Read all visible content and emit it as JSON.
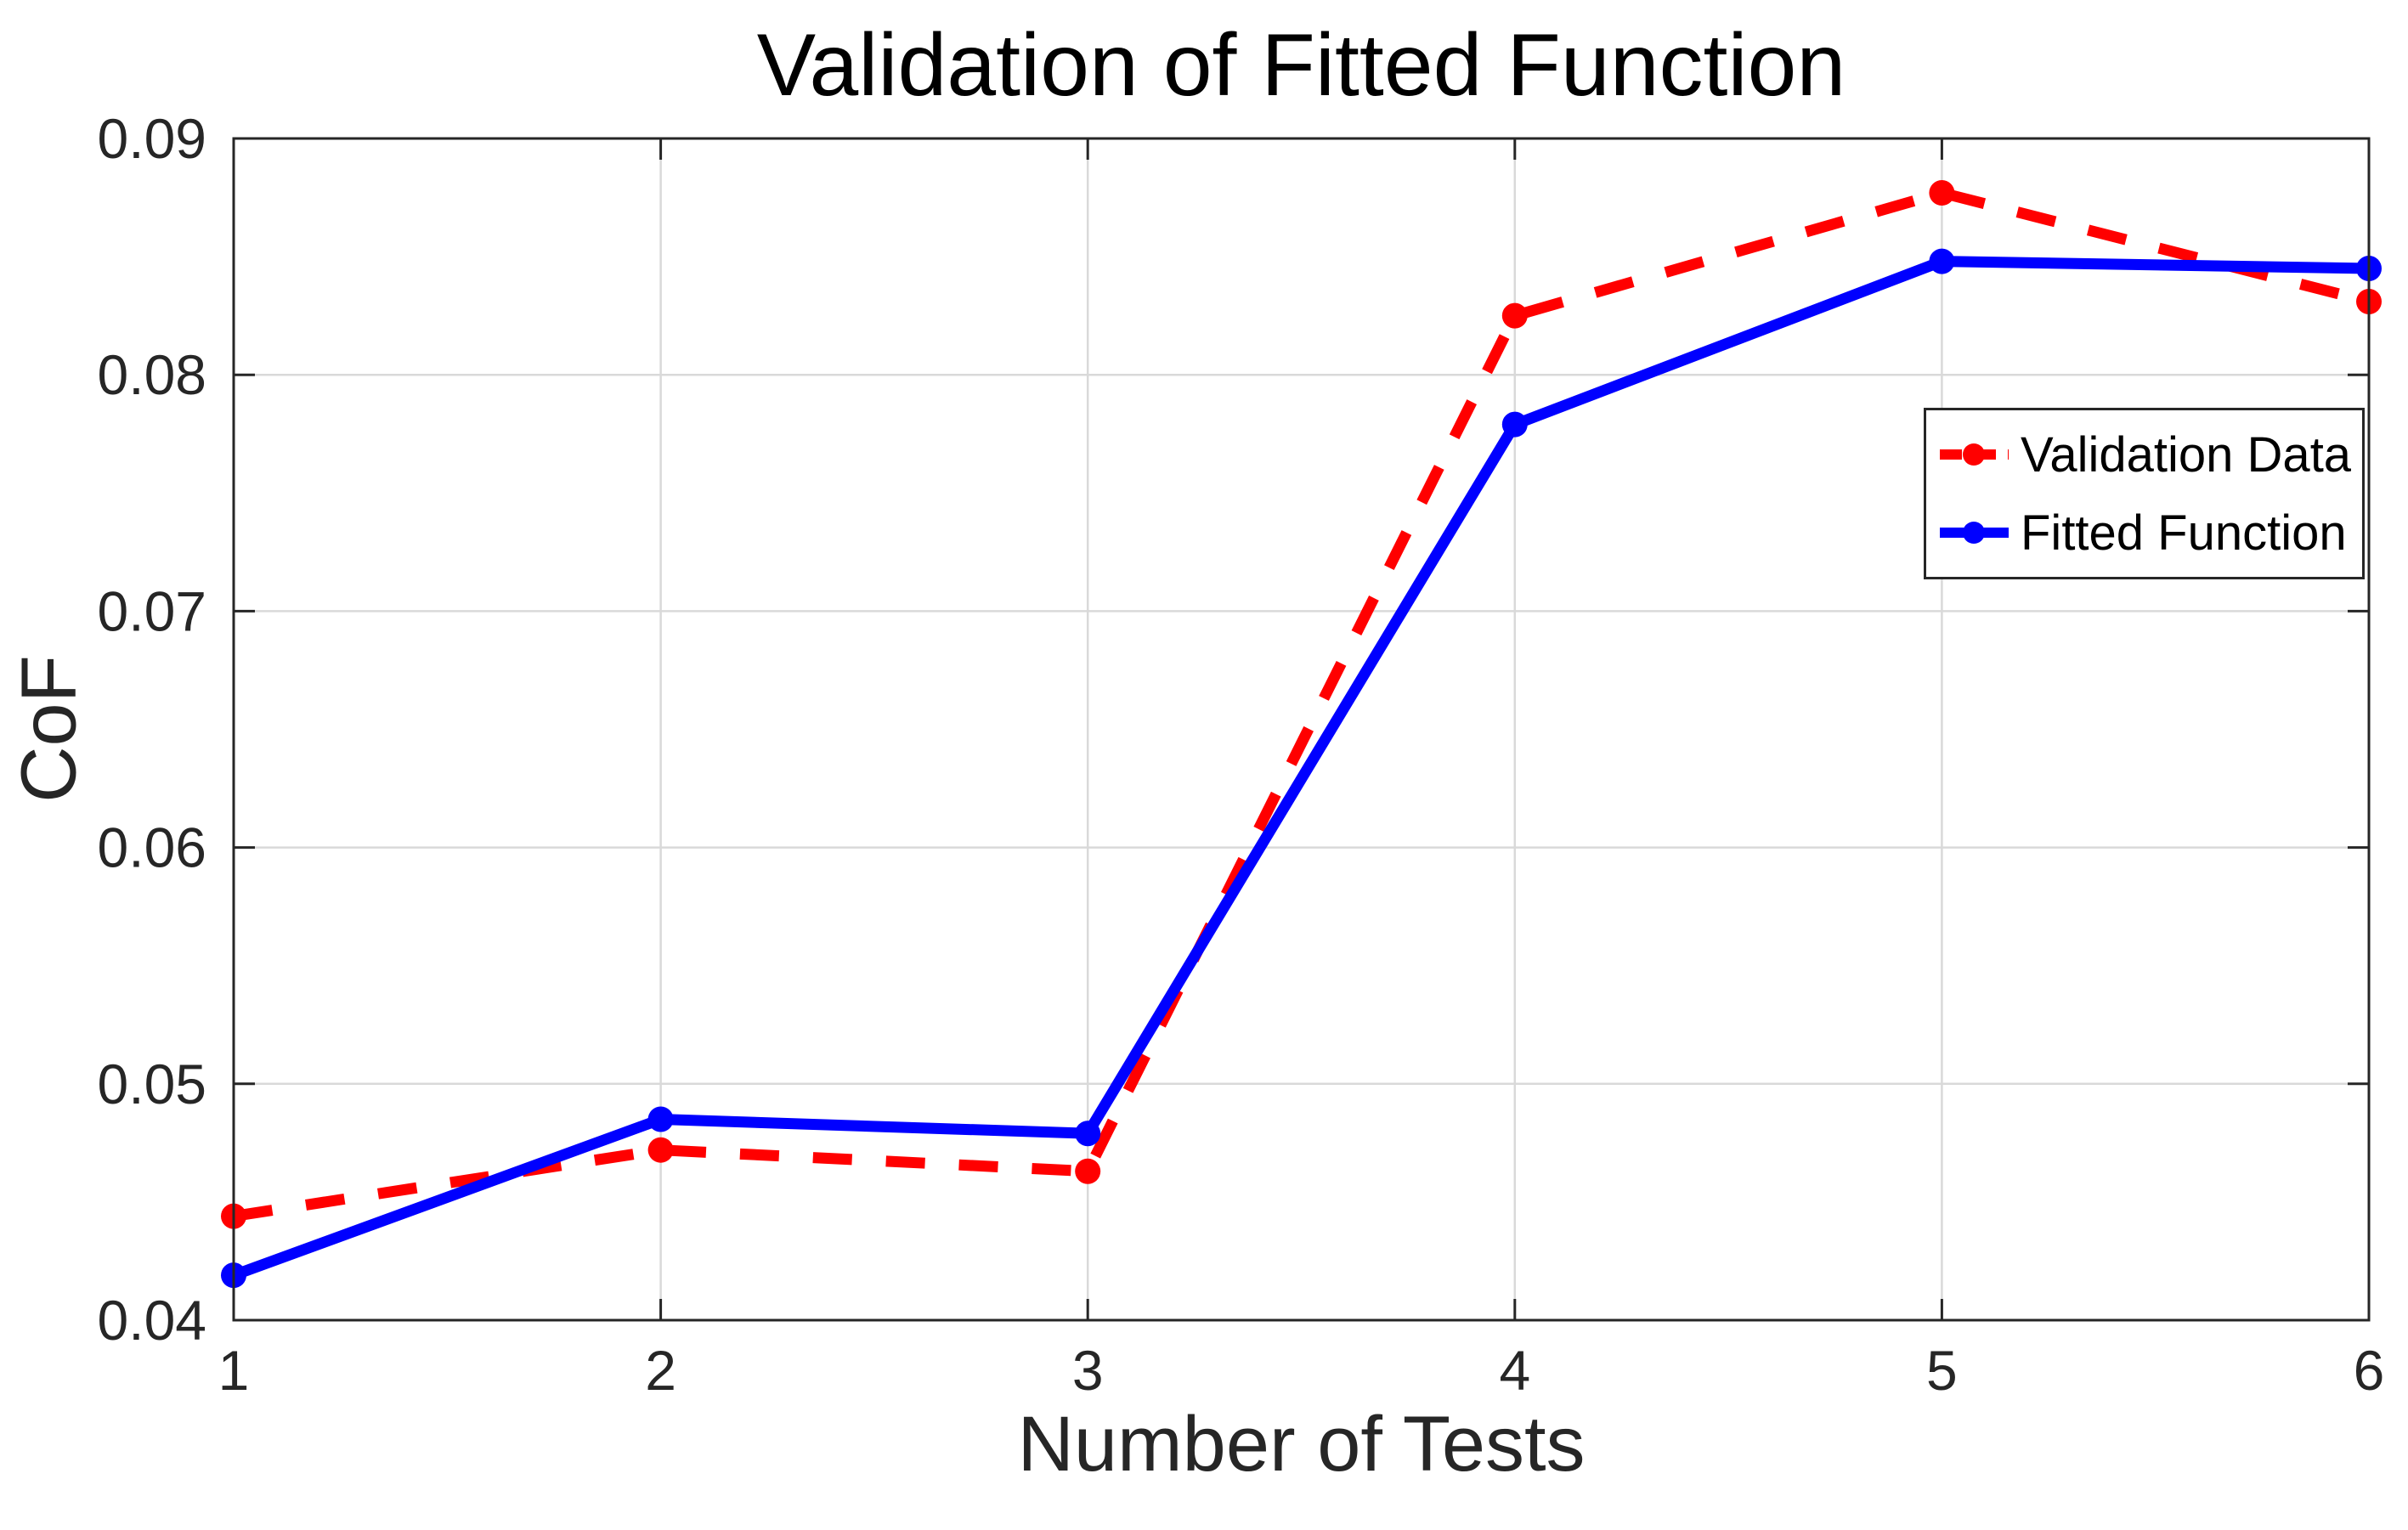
{
  "title": "Validation of Fitted Function",
  "axes": {
    "xlabel": "Number of Tests",
    "ylabel": "CoF"
  },
  "legend": {
    "items": [
      {
        "label": "Validation Data",
        "color": "#ff0000",
        "line_style": "dashed",
        "marker": "circle"
      },
      {
        "label": "Fitted Function",
        "color": "#0000ff",
        "line_style": "solid",
        "marker": "circle"
      }
    ]
  },
  "colors": {
    "validation_series": "#ff0000",
    "fitted_series": "#0000ff",
    "axis_frame": "#262626",
    "grid_line": "#d9d9d9",
    "tick_text": "#262626",
    "background": "#ffffff"
  },
  "chart_data": {
    "type": "line",
    "title": "Validation of Fitted Function",
    "xlabel": "Number of Tests",
    "ylabel": "CoF",
    "x": [
      1,
      2,
      3,
      4,
      5,
      6
    ],
    "series": [
      {
        "name": "Validation Data",
        "color": "#ff0000",
        "line_style": "dashed",
        "marker": "circle",
        "values": [
          0.0444,
          0.0472,
          0.0463,
          0.0825,
          0.0877,
          0.0831
        ]
      },
      {
        "name": "Fitted Function",
        "color": "#0000ff",
        "line_style": "solid",
        "marker": "circle",
        "values": [
          0.0419,
          0.0485,
          0.0479,
          0.0779,
          0.0848,
          0.0845
        ]
      }
    ],
    "xlim": [
      1,
      6
    ],
    "ylim": [
      0.04,
      0.09
    ],
    "x_ticks": [
      1,
      2,
      3,
      4,
      5,
      6
    ],
    "y_ticks": [
      0.04,
      0.05,
      0.06,
      0.07,
      0.08,
      0.09
    ],
    "y_tick_decimals": 2,
    "grid": true,
    "legend_position": "upper-right-inside"
  }
}
